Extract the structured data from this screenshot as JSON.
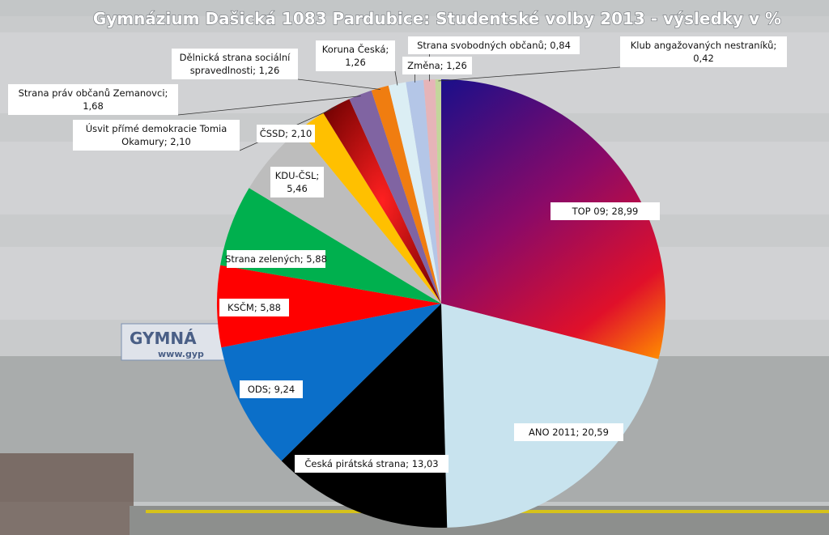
{
  "chart_data": {
    "type": "pie",
    "title": "Gymnázium Dašická 1083 Pardubice: Studentské volby 2013 - výsledky v %",
    "slices": [
      {
        "label": "TOP 09; 28,99",
        "value": 28.99,
        "color": "#7a0a78"
      },
      {
        "label": "ANO 2011; 20,59",
        "value": 20.59,
        "color": "#c8e3ee"
      },
      {
        "label": "Česká pirátská strana; 13,03",
        "value": 13.03,
        "color": "#000000"
      },
      {
        "label": "ODS; 9,24",
        "value": 9.24,
        "color": "#0b6fc9"
      },
      {
        "label": "KSČM; 5,88",
        "value": 5.88,
        "color": "#ff0000"
      },
      {
        "label": "Strana zelených; 5,88",
        "value": 5.88,
        "color": "#00b04e"
      },
      {
        "label": "KDU-ČSL; 5,46",
        "value": 5.46,
        "color": "#bdbdbd"
      },
      {
        "label": "ČSSD; 2,10",
        "value": 2.1,
        "color": "#ffc000"
      },
      {
        "label": "Úsvit přímé demokracie Tomia Okamury; 2,10",
        "value": 2.1,
        "color": "#c00000"
      },
      {
        "label": "Strana práv občanů Zemanovci; 1,68",
        "value": 1.68,
        "color": "#8064a2"
      },
      {
        "label": "Dělnická strana sociální spravedlnosti; 1,26",
        "value": 1.26,
        "color": "#f07d10"
      },
      {
        "label": "Koruna Česká; 1,26",
        "value": 1.26,
        "color": "#dbeef4"
      },
      {
        "label": "Změna; 1,26",
        "value": 1.26,
        "color": "#b4c6e7"
      },
      {
        "label": "Strana svobodných občanů; 0,84",
        "value": 0.84,
        "color": "#e6b4b8"
      },
      {
        "label": "Klub angažovaných nestraníků; 0,42",
        "value": 0.42,
        "color": "#c3d69b"
      }
    ]
  }
}
